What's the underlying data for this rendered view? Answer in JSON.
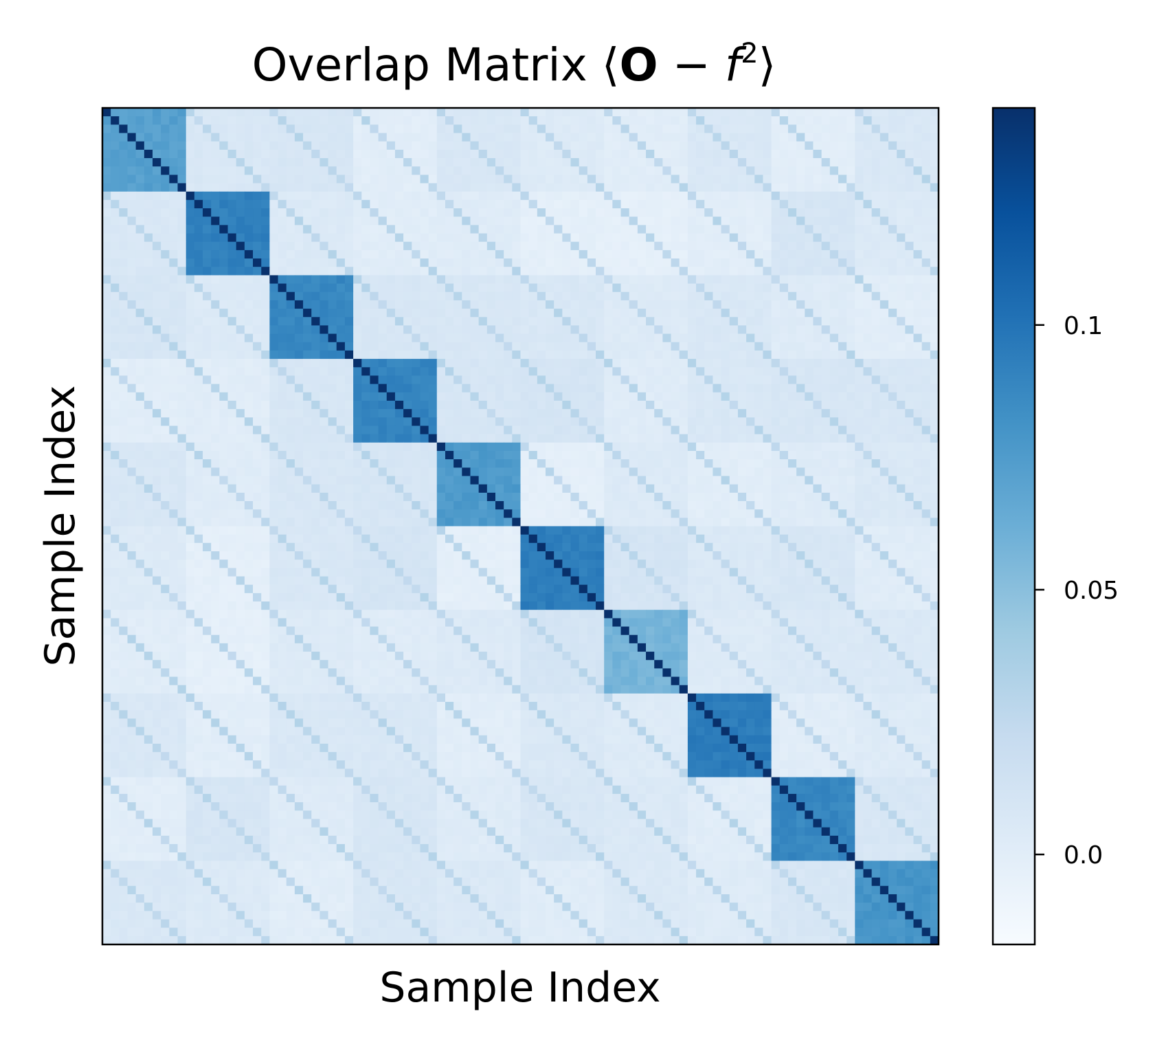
{
  "chart_data": {
    "type": "heatmap",
    "title": "Overlap Matrix ⟨O − f²⟩",
    "title_parts": {
      "main": "Overlap Matrix ⟨",
      "bold": "O",
      "middle": " − ",
      "italic": "f",
      "sup": "2",
      "close": "⟩"
    },
    "xlabel": "Sample Index",
    "ylabel": "Sample Index",
    "matrix": {
      "size": 100,
      "n_blocks": 10,
      "block_size": 10,
      "diagonal_value": 0.142,
      "block_values": [
        0.072,
        0.092,
        0.088,
        0.09,
        0.076,
        0.094,
        0.058,
        0.095,
        0.088,
        0.08
      ],
      "off_block_base": 0.004,
      "off_block_lines_value": 0.028,
      "off_block_lines_every": 10
    },
    "colorbar": {
      "colormap": "Blues",
      "vmin": -0.017,
      "vmax": 0.141,
      "ticks": [
        0.0,
        0.05,
        0.1
      ],
      "tick_labels": [
        "0.0",
        "0.05",
        "0.1"
      ]
    },
    "grid": false
  }
}
